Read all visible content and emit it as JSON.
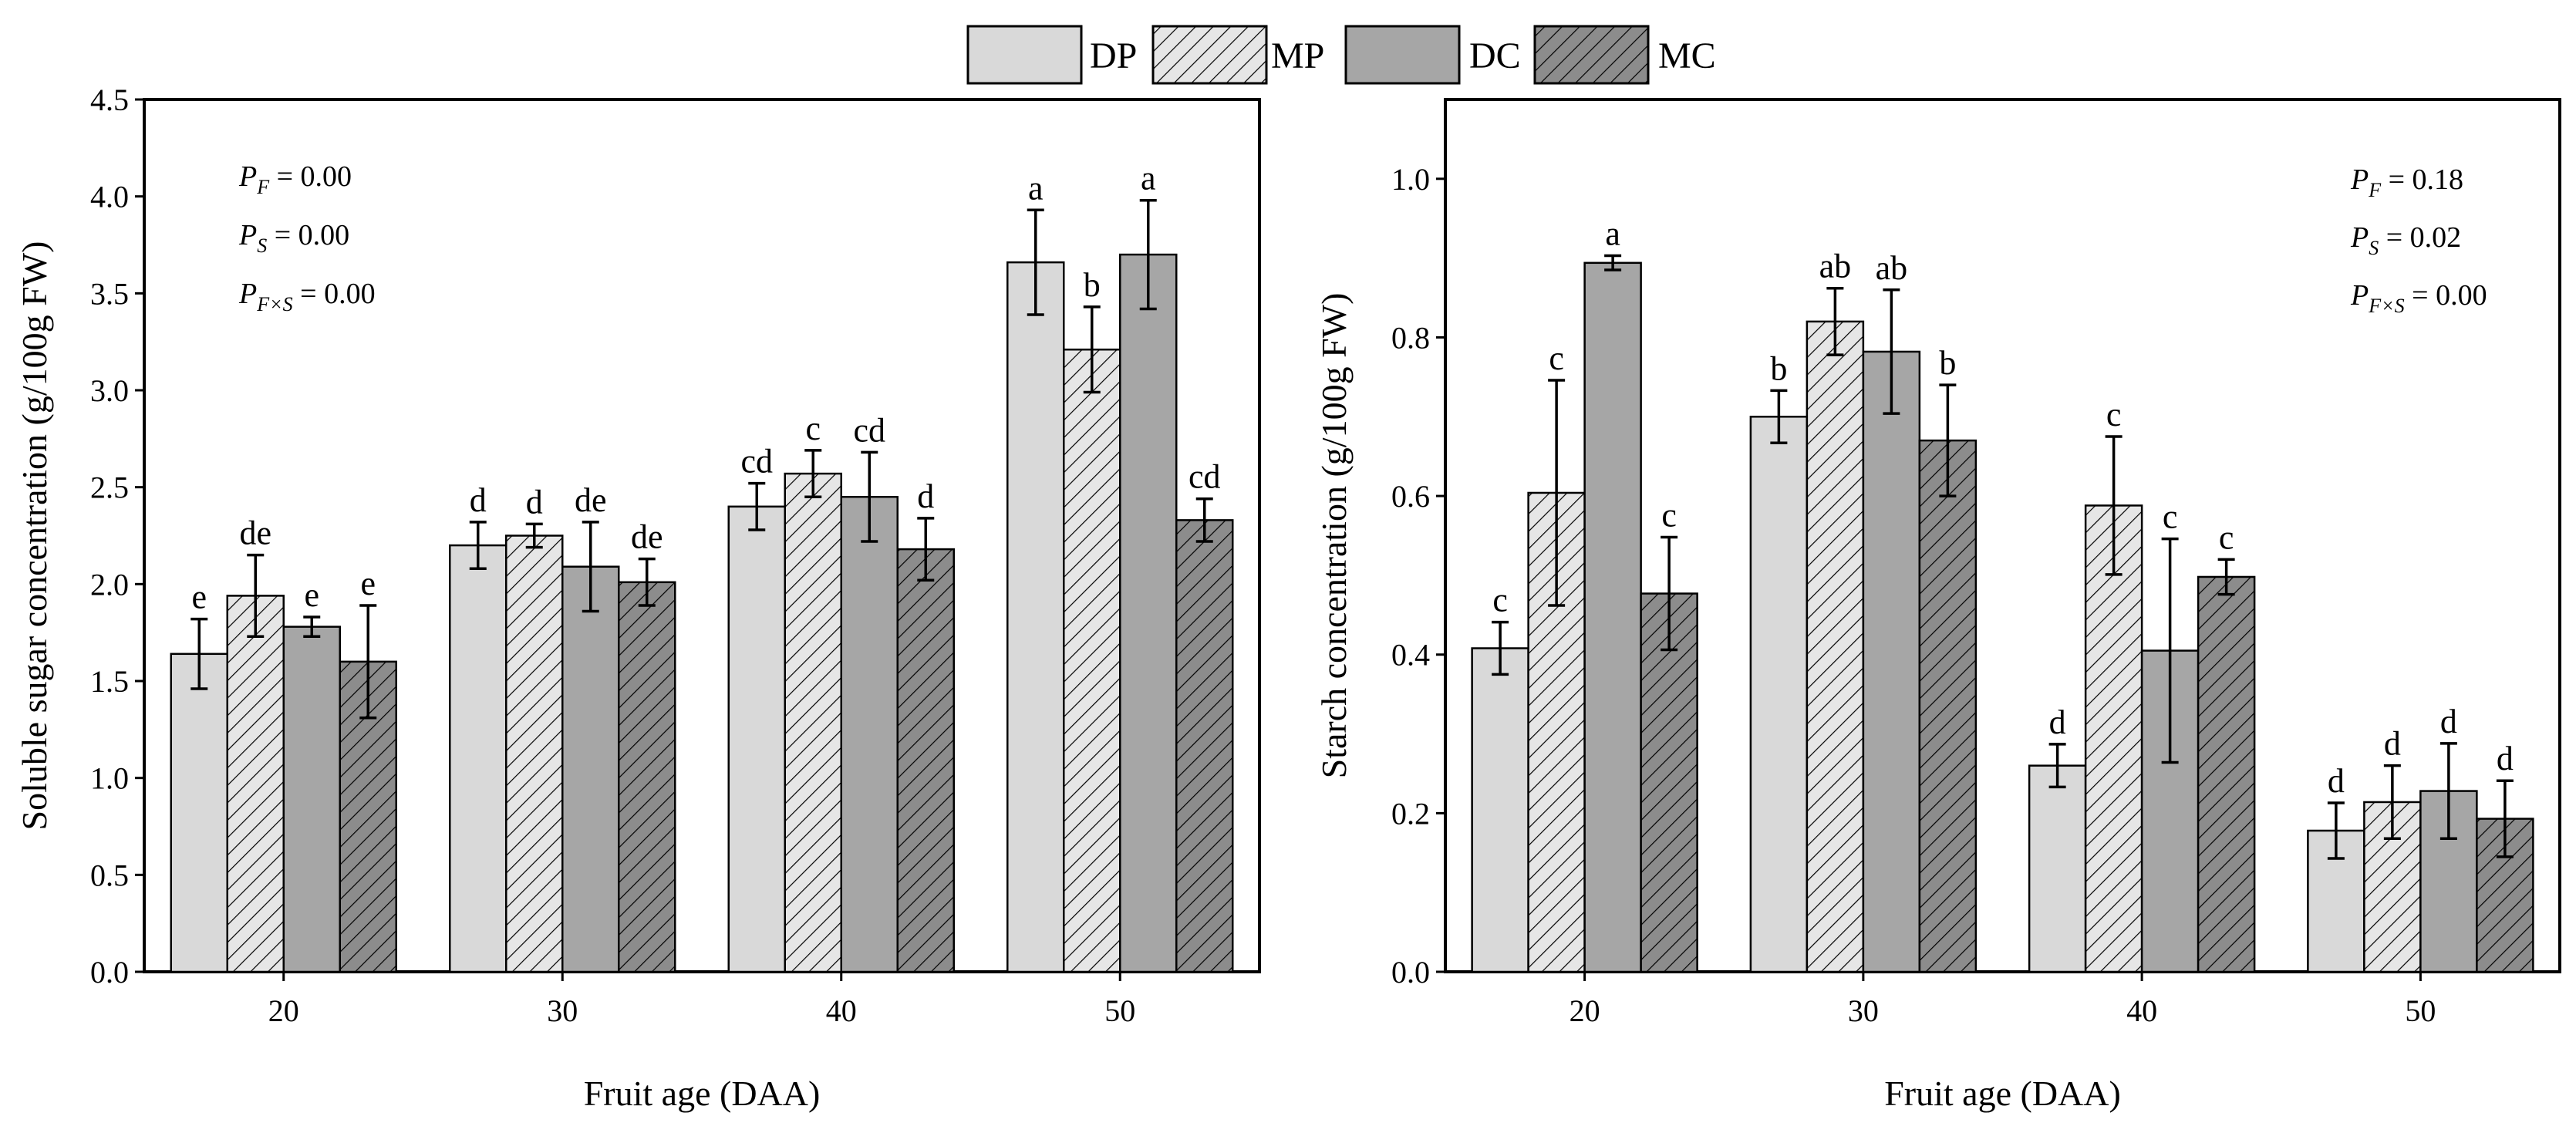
{
  "legend": [
    {
      "label": "DP",
      "color": "#d9d9d9",
      "hatch": false
    },
    {
      "label": "MP",
      "color": "#e6e6e6",
      "hatch": true
    },
    {
      "label": "DC",
      "color": "#a6a6a6",
      "hatch": false
    },
    {
      "label": "MC",
      "color": "#8c8c8c",
      "hatch": true
    }
  ],
  "chart_data": [
    {
      "type": "bar",
      "title": "",
      "xlabel": "Fruit age (DAA)",
      "ylabel": "Soluble sugar concentration (g/100g FW)",
      "categories": [
        "20",
        "30",
        "40",
        "50"
      ],
      "ylim": [
        0,
        4.5
      ],
      "yticks": [
        "0.0",
        "0.5",
        "1.0",
        "1.5",
        "2.0",
        "2.5",
        "3.0",
        "3.5",
        "4.0",
        "4.5"
      ],
      "series": [
        {
          "name": "DP",
          "values": [
            1.64,
            2.2,
            2.4,
            3.66
          ],
          "errors": [
            0.18,
            0.12,
            0.12,
            0.27
          ],
          "labels": [
            "e",
            "d",
            "cd",
            "a"
          ]
        },
        {
          "name": "MP",
          "values": [
            1.94,
            2.25,
            2.57,
            3.21
          ],
          "errors": [
            0.21,
            0.06,
            0.12,
            0.22
          ],
          "labels": [
            "de",
            "d",
            "c",
            "b"
          ]
        },
        {
          "name": "DC",
          "values": [
            1.78,
            2.09,
            2.45,
            3.7
          ],
          "errors": [
            0.05,
            0.23,
            0.23,
            0.28
          ],
          "labels": [
            "e",
            "de",
            "cd",
            "a"
          ]
        },
        {
          "name": "MC",
          "values": [
            1.6,
            2.01,
            2.18,
            2.33
          ],
          "errors": [
            0.29,
            0.12,
            0.16,
            0.11
          ],
          "labels": [
            "e",
            "de",
            "d",
            "cd"
          ]
        }
      ],
      "stats": [
        {
          "p": "P",
          "sub": "F",
          "value": " = 0.00"
        },
        {
          "p": "P",
          "sub": "S",
          "value": " = 0.00"
        },
        {
          "p": "P",
          "sub": "F×S",
          "value": " = 0.00"
        }
      ]
    },
    {
      "type": "bar",
      "title": "",
      "xlabel": "Fruit age (DAA)",
      "ylabel": "Starch concentration (g/100g FW)",
      "categories": [
        "20",
        "30",
        "40",
        "50"
      ],
      "ylim": [
        0,
        1.1
      ],
      "yticks": [
        "0.0",
        "0.2",
        "0.4",
        "0.6",
        "0.8",
        "1.0"
      ],
      "series": [
        {
          "name": "DP",
          "values": [
            0.408,
            0.7,
            0.26,
            0.178
          ],
          "errors": [
            0.033,
            0.033,
            0.027,
            0.035
          ],
          "labels": [
            "c",
            "b",
            "d",
            "d"
          ]
        },
        {
          "name": "MP",
          "values": [
            0.604,
            0.82,
            0.588,
            0.214
          ],
          "errors": [
            0.142,
            0.042,
            0.087,
            0.046
          ],
          "labels": [
            "c",
            "ab",
            "c",
            "d"
          ]
        },
        {
          "name": "DC",
          "values": [
            0.894,
            0.782,
            0.405,
            0.228
          ],
          "errors": [
            0.009,
            0.078,
            0.141,
            0.06
          ],
          "labels": [
            "a",
            "ab",
            "c",
            "d"
          ]
        },
        {
          "name": "MC",
          "values": [
            0.477,
            0.67,
            0.498,
            0.193
          ],
          "errors": [
            0.071,
            0.07,
            0.022,
            0.048
          ],
          "labels": [
            "c",
            "b",
            "c",
            "d"
          ]
        }
      ],
      "stats": [
        {
          "p": "P",
          "sub": "F",
          "value": " = 0.18"
        },
        {
          "p": "P",
          "sub": "S",
          "value": " = 0.02"
        },
        {
          "p": "P",
          "sub": "F×S",
          "value": " = 0.00"
        }
      ]
    }
  ]
}
